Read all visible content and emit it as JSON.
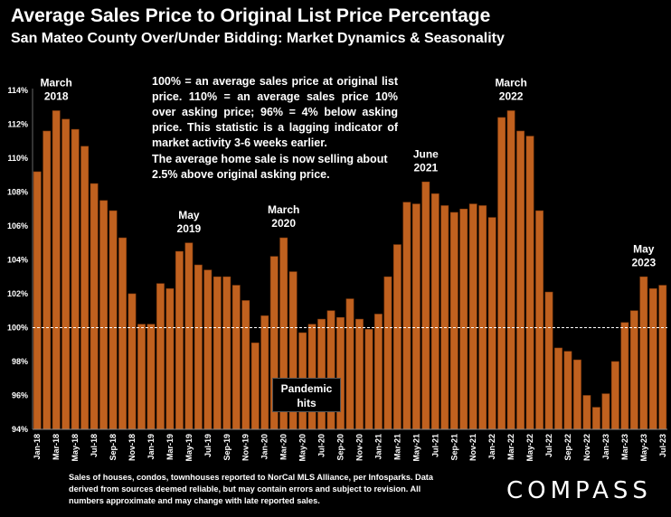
{
  "header": {
    "title": "Average Sales Price to Original List Price Percentage",
    "subtitle": "San Mateo County Over/Under Bidding: Market Dynamics & Seasonality"
  },
  "notes": {
    "definition": "100% = an average sales price at original list price. 110% = an average sales price 10% over asking price; 96% = 4% below asking price. This statistic is a lagging indicator of market activity 3-6 weeks earlier.",
    "current": "The average home sale is now selling about 2.5% above original asking price."
  },
  "pandemic_label": "Pandemic hits",
  "footnote": "Sales of houses, condos, townhouses reported to NorCal MLS Alliance, per Infosparks. Data derived from sources deemed reliable, but may contain errors and subject to revision. All numbers approximate and may change with late reported sales.",
  "brand": {
    "logo_text": "COMPASS"
  },
  "colors": {
    "bar": "#c0611f",
    "bar_edge": "#8a3f0e",
    "background": "#000000",
    "grid": "#3a3a3a"
  },
  "chart_data": {
    "type": "bar",
    "title": "Average Sales Price to Original List Price Percentage",
    "y_ticks": [
      "94%",
      "96%",
      "98%",
      "100%",
      "102%",
      "104%",
      "106%",
      "108%",
      "110%",
      "112%",
      "114%"
    ],
    "ylim": [
      94,
      114
    ],
    "reference_line": 100,
    "x_tick_labels": [
      "Jan-18",
      "Mar-18",
      "May-18",
      "Jul-18",
      "Sep-18",
      "Nov-18",
      "Jan-19",
      "Mar-19",
      "May-19",
      "Jul-19",
      "Sep-19",
      "Nov-19",
      "Jan-20",
      "Mar-20",
      "May-20",
      "Jul-20",
      "Sep-20",
      "Nov-20",
      "Jan-21",
      "Mar-21",
      "May-21",
      "Jul-21",
      "Sep-21",
      "Nov-21",
      "Jan-22",
      "Mar-22",
      "May-22",
      "Jul-22",
      "Sep-22",
      "Nov-22",
      "Jan-23",
      "Mar-23",
      "May-23",
      "Jul-23"
    ],
    "values": [
      109.2,
      111.6,
      112.8,
      112.3,
      111.7,
      110.7,
      108.5,
      107.5,
      106.9,
      105.3,
      102.0,
      100.2,
      100.2,
      102.6,
      102.3,
      104.5,
      105.0,
      103.7,
      103.4,
      103.0,
      103.0,
      102.5,
      101.6,
      99.1,
      100.7,
      104.2,
      105.3,
      103.3,
      99.7,
      100.2,
      100.5,
      101.0,
      100.6,
      101.7,
      100.5,
      99.9,
      100.8,
      103.0,
      104.9,
      107.4,
      107.3,
      108.6,
      107.9,
      107.2,
      106.8,
      107.0,
      107.3,
      107.2,
      106.5,
      112.4,
      112.8,
      111.6,
      111.3,
      106.9,
      102.1,
      98.8,
      98.6,
      98.1,
      96.0,
      95.3,
      96.1,
      98.0,
      100.3,
      101.0,
      103.0,
      102.3,
      102.5
    ],
    "annotations": [
      {
        "label": "March 2018",
        "index": 2
      },
      {
        "label": "May 2019",
        "index": 16
      },
      {
        "label": "March 2020",
        "index": 26
      },
      {
        "label": "June 2021",
        "index": 41
      },
      {
        "label": "March 2022",
        "index": 50
      },
      {
        "label": "May 2023",
        "index": 64
      }
    ]
  }
}
